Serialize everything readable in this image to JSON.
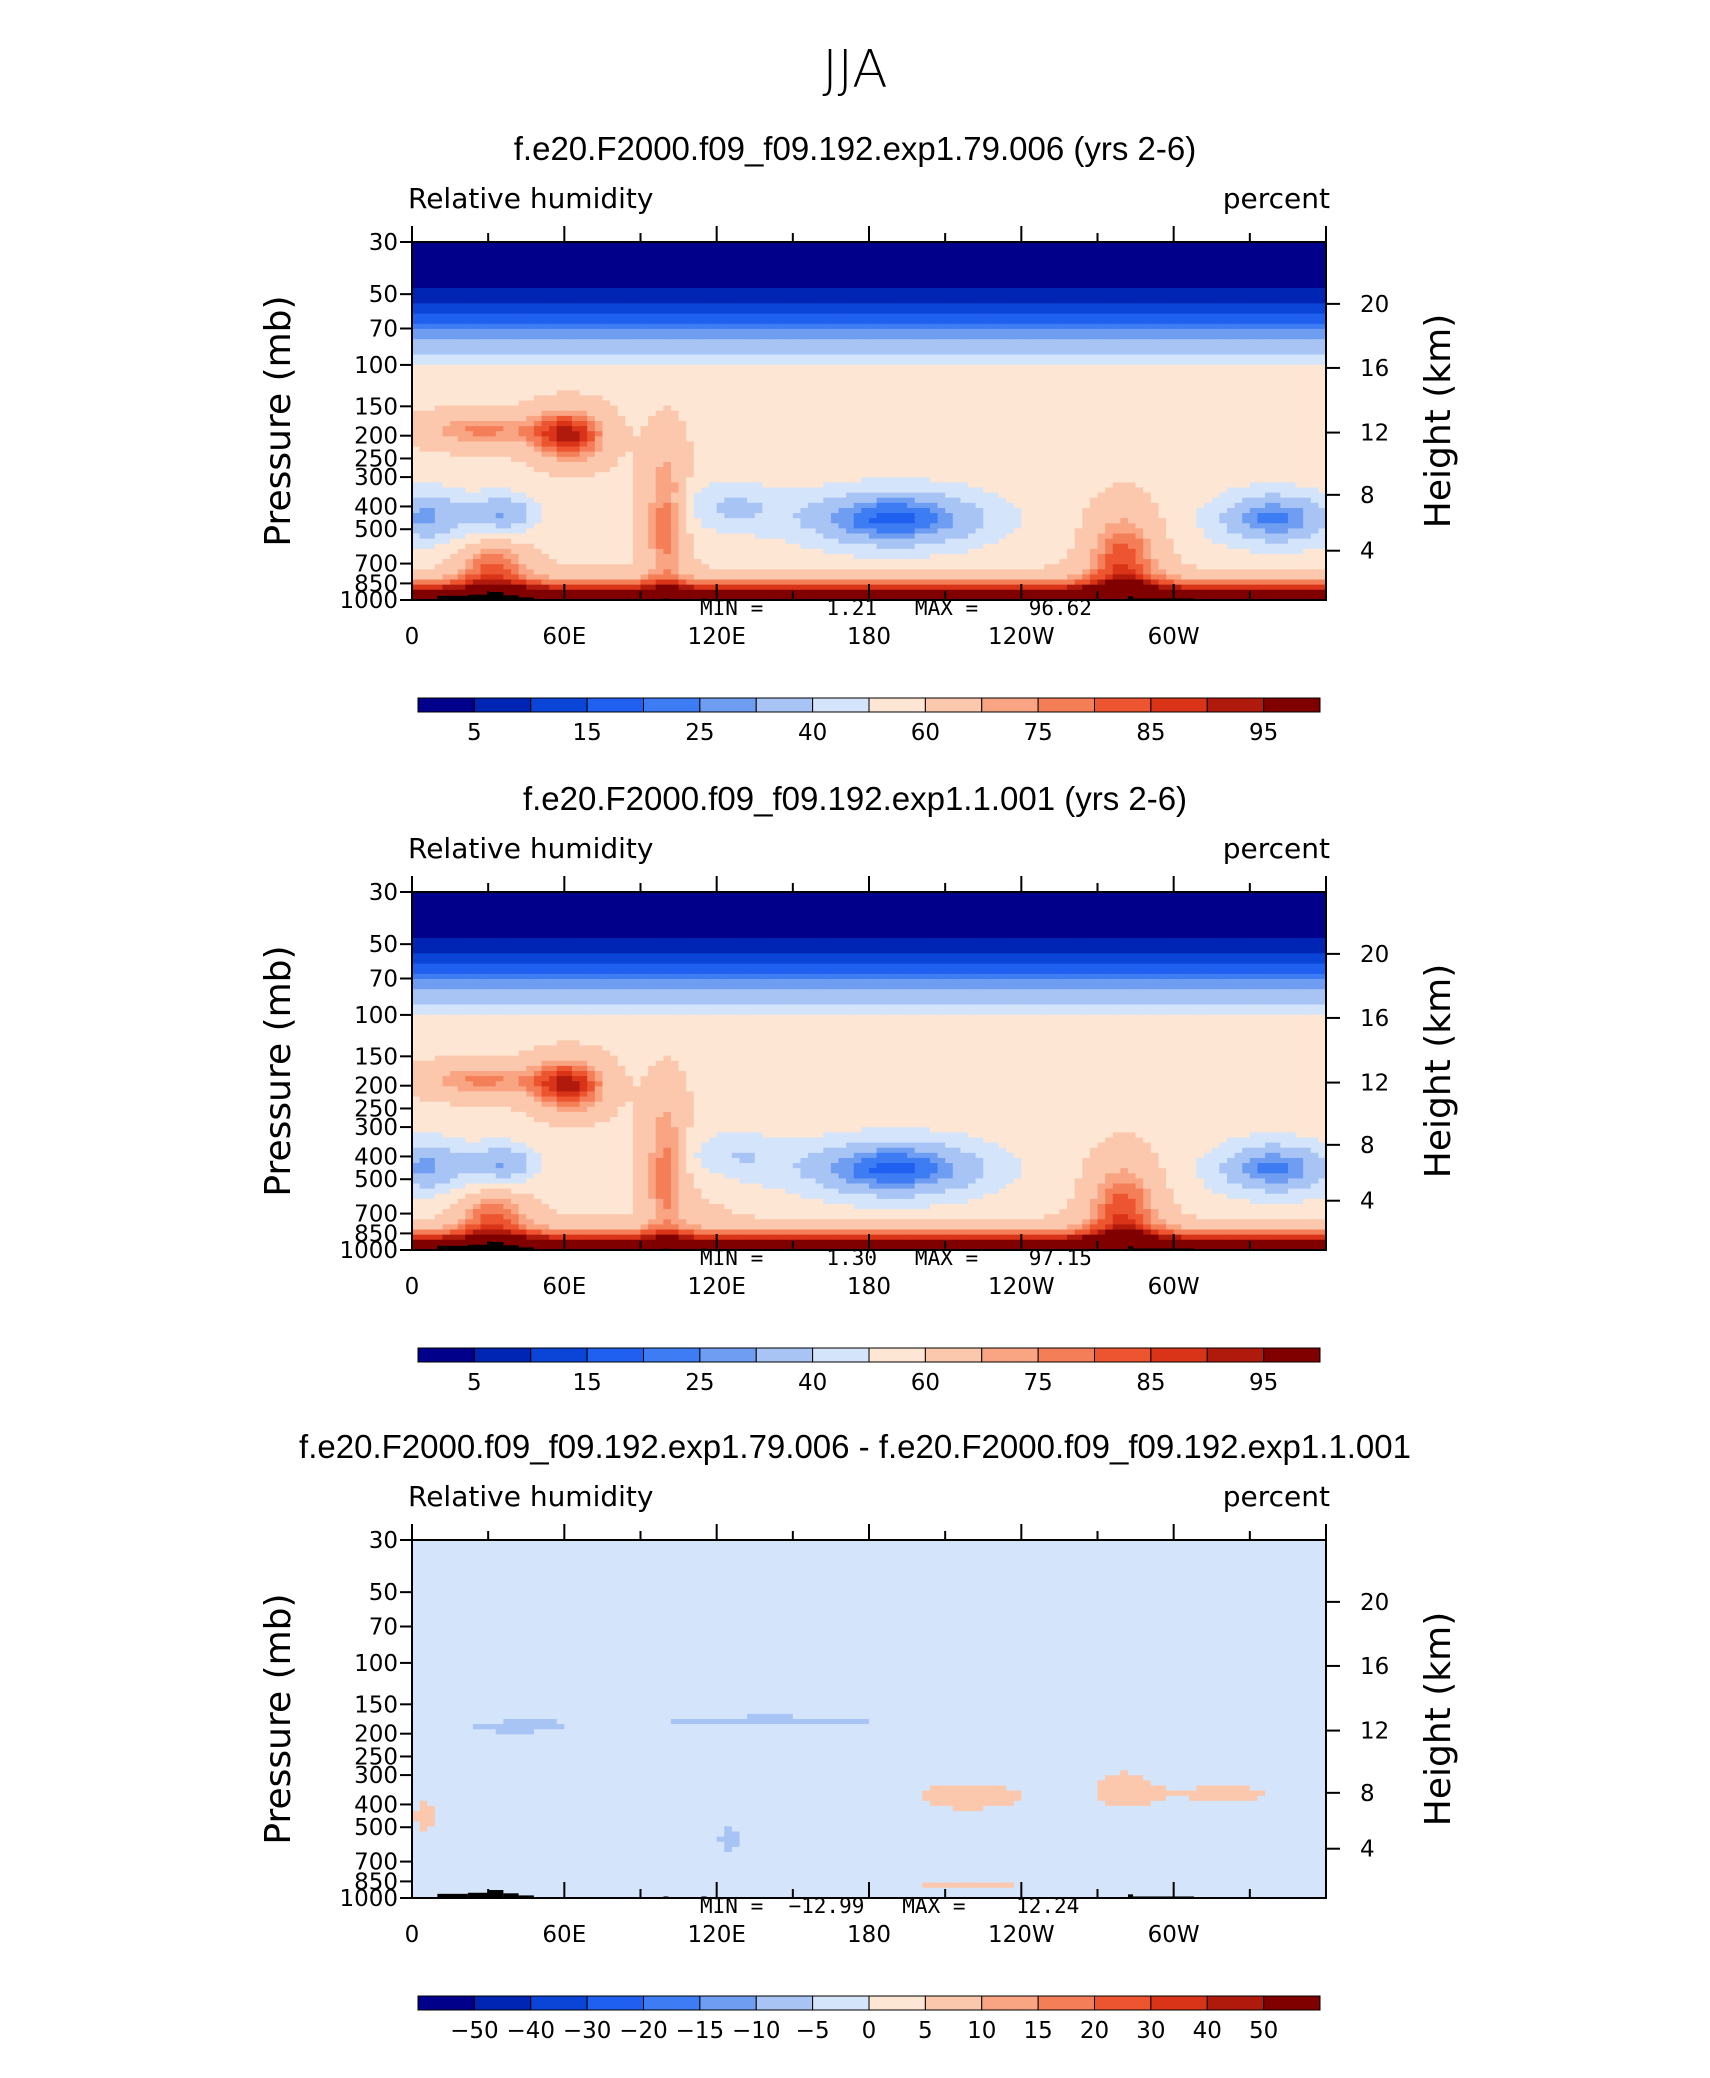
{
  "page_title": "JJA",
  "chart_data": [
    {
      "type": "heatmap",
      "title": "f.e20.F2000.f09_f09.192.exp1.79.006 (yrs 2-6)",
      "variable_label": "Relative humidity",
      "units_label": "percent",
      "ylabel": "Pressure (mb)",
      "ylabel_right": "Height (km)",
      "x_tick_labels": [
        "0",
        "60E",
        "120E",
        "180",
        "120W",
        "60W"
      ],
      "y_tick_labels": [
        "30",
        "50",
        "70",
        "100",
        "150",
        "200",
        "250",
        "300",
        "400",
        "500",
        "700",
        "850",
        "1000"
      ],
      "y_right_tick_labels": [
        "20",
        "16",
        "12",
        "8",
        "4"
      ],
      "min_max_text": "MIN =     1.21   MAX =    96.62",
      "min": 1.21,
      "max": 96.62,
      "colorbar_labels": [
        "5",
        "15",
        "25",
        "40",
        "60",
        "75",
        "85",
        "95"
      ],
      "description": "Deep blue minimum near 30 mb; dry minima (~15-25%) near 400-500 mb around 60E-90E, 150W-120W and 30W-0; moist maxima (85-95%) near surface across all longitudes"
    },
    {
      "type": "heatmap",
      "title": "f.e20.F2000.f09_f09.192.exp1.1.001 (yrs 2-6)",
      "variable_label": "Relative humidity",
      "units_label": "percent",
      "ylabel": "Pressure (mb)",
      "ylabel_right": "Height (km)",
      "x_tick_labels": [
        "0",
        "60E",
        "120E",
        "180",
        "120W",
        "60W"
      ],
      "y_tick_labels": [
        "30",
        "50",
        "70",
        "100",
        "150",
        "200",
        "250",
        "300",
        "400",
        "500",
        "700",
        "850",
        "1000"
      ],
      "y_right_tick_labels": [
        "20",
        "16",
        "12",
        "8",
        "4"
      ],
      "min_max_text": "MIN =     1.30   MAX =    97.15",
      "min": 1.3,
      "max": 97.15,
      "colorbar_labels": [
        "5",
        "15",
        "25",
        "40",
        "60",
        "75",
        "85",
        "95"
      ],
      "description": "Pattern very similar to top panel; dry cores near 400-500 mb, moist boundary layer"
    },
    {
      "type": "heatmap",
      "title": "f.e20.F2000.f09_f09.192.exp1.79.006 - f.e20.F2000.f09_f09.192.exp1.1.001",
      "variable_label": "Relative humidity",
      "units_label": "percent",
      "ylabel": "Pressure (mb)",
      "ylabel_right": "Height (km)",
      "x_tick_labels": [
        "0",
        "60E",
        "120E",
        "180",
        "120W",
        "60W"
      ],
      "y_tick_labels": [
        "30",
        "50",
        "70",
        "100",
        "150",
        "200",
        "250",
        "300",
        "400",
        "500",
        "700",
        "850",
        "1000"
      ],
      "y_right_tick_labels": [
        "20",
        "16",
        "12",
        "8",
        "4"
      ],
      "min_max_text": "MIN =  −12.99   MAX =    12.24",
      "min": -12.99,
      "max": 12.24,
      "colorbar_labels": [
        "−50",
        "−40",
        "−30",
        "−20",
        "−15",
        "−10",
        "−5",
        "0",
        "5",
        "10",
        "15",
        "20",
        "30",
        "40",
        "50"
      ],
      "description": "Differences mostly within -5 to 5 percent; small positive patches (5-10) near 300-400 mb at 150W-0, small negative patches near 150-200 mb"
    }
  ],
  "colors": {
    "rh_scale": [
      "#00008b",
      "#0024b4",
      "#0a45d8",
      "#1f60f0",
      "#3d7cf2",
      "#6e9df2",
      "#a7c4f5",
      "#d4e4fa",
      "#fde6d4",
      "#fcc8ad",
      "#f9a583",
      "#f47e57",
      "#ec5530",
      "#d93418",
      "#b01a0c",
      "#800000"
    ],
    "diff_scale": [
      "#00008b",
      "#0024b4",
      "#0a45d8",
      "#1f60f0",
      "#3d7cf2",
      "#6e9df2",
      "#a7c4f5",
      "#d4e4fa",
      "#fde6d4",
      "#fcc8ad",
      "#f9a583",
      "#f47e57",
      "#ec5530",
      "#d93418",
      "#b01a0c",
      "#800000"
    ],
    "topography": "#000000"
  }
}
